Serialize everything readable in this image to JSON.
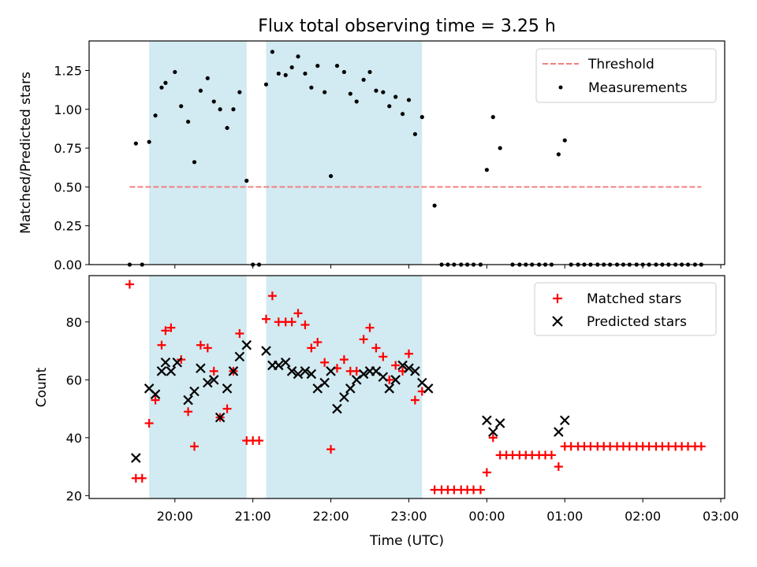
{
  "title": "Flux total observing time = 3.25 h",
  "colors": {
    "shade": "#add8e6",
    "threshold": "#f08080",
    "measurement": "#000000",
    "matched": "#ff0000",
    "predicted": "#000000"
  },
  "chart_data": [
    {
      "type": "scatter",
      "ylabel": "Matched/Predicted stars",
      "xlim_hours": [
        18.9,
        27.05
      ],
      "ylim": [
        0,
        1.44
      ],
      "yticks": [
        "0.00",
        "0.25",
        "0.50",
        "0.75",
        "1.00",
        "1.25"
      ],
      "legend": {
        "placement": "top-right",
        "entries": [
          "Threshold",
          "Measurements"
        ]
      },
      "shaded_intervals_hours": [
        [
          19.67,
          20.92
        ],
        [
          21.17,
          23.17
        ]
      ],
      "threshold": {
        "value": 0.5,
        "x_range_hours": [
          19.42,
          26.75
        ]
      },
      "series": [
        {
          "name": "Measurements",
          "points": [
            [
              19.42,
              0
            ],
            [
              19.5,
              0.78
            ],
            [
              19.58,
              0
            ],
            [
              19.67,
              0.79
            ],
            [
              19.75,
              0.96
            ],
            [
              19.83,
              1.14
            ],
            [
              19.88,
              1.17
            ],
            [
              20.0,
              1.24
            ],
            [
              20.08,
              1.02
            ],
            [
              20.17,
              0.92
            ],
            [
              20.25,
              0.66
            ],
            [
              20.33,
              1.12
            ],
            [
              20.42,
              1.2
            ],
            [
              20.5,
              1.05
            ],
            [
              20.58,
              1.0
            ],
            [
              20.67,
              0.88
            ],
            [
              20.75,
              1.0
            ],
            [
              20.83,
              1.11
            ],
            [
              20.92,
              0.54
            ],
            [
              21.0,
              0
            ],
            [
              21.08,
              0
            ],
            [
              21.17,
              1.16
            ],
            [
              21.25,
              1.37
            ],
            [
              21.33,
              1.23
            ],
            [
              21.42,
              1.22
            ],
            [
              21.5,
              1.27
            ],
            [
              21.58,
              1.34
            ],
            [
              21.67,
              1.23
            ],
            [
              21.75,
              1.14
            ],
            [
              21.83,
              1.28
            ],
            [
              21.92,
              1.11
            ],
            [
              22.0,
              0.57
            ],
            [
              22.08,
              1.28
            ],
            [
              22.17,
              1.24
            ],
            [
              22.25,
              1.1
            ],
            [
              22.33,
              1.05
            ],
            [
              22.42,
              1.19
            ],
            [
              22.5,
              1.24
            ],
            [
              22.58,
              1.12
            ],
            [
              22.67,
              1.11
            ],
            [
              22.75,
              1.02
            ],
            [
              22.83,
              1.08
            ],
            [
              22.92,
              0.97
            ],
            [
              23.0,
              1.06
            ],
            [
              23.08,
              0.84
            ],
            [
              23.17,
              0.95
            ],
            [
              23.33,
              0.38
            ],
            [
              23.42,
              0
            ],
            [
              23.5,
              0
            ],
            [
              23.58,
              0
            ],
            [
              23.67,
              0
            ],
            [
              23.75,
              0
            ],
            [
              23.83,
              0
            ],
            [
              23.92,
              0
            ],
            [
              24.0,
              0.61
            ],
            [
              24.08,
              0.95
            ],
            [
              24.17,
              0.75
            ],
            [
              24.33,
              0
            ],
            [
              24.42,
              0
            ],
            [
              24.5,
              0
            ],
            [
              24.58,
              0
            ],
            [
              24.67,
              0
            ],
            [
              24.75,
              0
            ],
            [
              24.83,
              0
            ],
            [
              24.92,
              0.71
            ],
            [
              25.0,
              0.8
            ],
            [
              25.08,
              0
            ],
            [
              25.17,
              0
            ],
            [
              25.25,
              0
            ],
            [
              25.33,
              0
            ],
            [
              25.42,
              0
            ],
            [
              25.5,
              0
            ],
            [
              25.58,
              0
            ],
            [
              25.67,
              0
            ],
            [
              25.75,
              0
            ],
            [
              25.83,
              0
            ],
            [
              25.92,
              0
            ],
            [
              26.0,
              0
            ],
            [
              26.08,
              0
            ],
            [
              26.17,
              0
            ],
            [
              26.25,
              0
            ],
            [
              26.33,
              0
            ],
            [
              26.42,
              0
            ],
            [
              26.5,
              0
            ],
            [
              26.58,
              0
            ],
            [
              26.67,
              0
            ],
            [
              26.75,
              0
            ]
          ]
        }
      ]
    },
    {
      "type": "scatter",
      "xlabel": "Time (UTC)",
      "ylabel": "Count",
      "xlim_hours": [
        18.9,
        27.05
      ],
      "ylim": [
        19,
        96
      ],
      "yticks": [
        "20",
        "40",
        "60",
        "80"
      ],
      "xticks": [
        {
          "hour": 20,
          "label": "20:00"
        },
        {
          "hour": 21,
          "label": "21:00"
        },
        {
          "hour": 22,
          "label": "22:00"
        },
        {
          "hour": 23,
          "label": "23:00"
        },
        {
          "hour": 24,
          "label": "00:00"
        },
        {
          "hour": 25,
          "label": "01:00"
        },
        {
          "hour": 26,
          "label": "02:00"
        },
        {
          "hour": 27,
          "label": "03:00"
        }
      ],
      "legend": {
        "placement": "top-right",
        "entries": [
          "Matched stars",
          "Predicted stars"
        ]
      },
      "shaded_intervals_hours": [
        [
          19.67,
          20.92
        ],
        [
          21.17,
          23.17
        ]
      ],
      "series": [
        {
          "name": "Matched stars",
          "marker": "plus",
          "points": [
            [
              19.42,
              93
            ],
            [
              19.5,
              26
            ],
            [
              19.58,
              26
            ],
            [
              19.67,
              45
            ],
            [
              19.75,
              53
            ],
            [
              19.83,
              72
            ],
            [
              19.88,
              77
            ],
            [
              19.95,
              78
            ],
            [
              20.08,
              67
            ],
            [
              20.17,
              49
            ],
            [
              20.25,
              37
            ],
            [
              20.33,
              72
            ],
            [
              20.42,
              71
            ],
            [
              20.5,
              63
            ],
            [
              20.58,
              47
            ],
            [
              20.67,
              50
            ],
            [
              20.75,
              63
            ],
            [
              20.83,
              76
            ],
            [
              20.92,
              39
            ],
            [
              21.0,
              39
            ],
            [
              21.08,
              39
            ],
            [
              21.17,
              81
            ],
            [
              21.25,
              89
            ],
            [
              21.33,
              80
            ],
            [
              21.42,
              80
            ],
            [
              21.5,
              80
            ],
            [
              21.58,
              83
            ],
            [
              21.67,
              79
            ],
            [
              21.75,
              71
            ],
            [
              21.83,
              73
            ],
            [
              21.92,
              66
            ],
            [
              22.0,
              36
            ],
            [
              22.08,
              64
            ],
            [
              22.17,
              67
            ],
            [
              22.25,
              63
            ],
            [
              22.33,
              63
            ],
            [
              22.42,
              74
            ],
            [
              22.5,
              78
            ],
            [
              22.58,
              71
            ],
            [
              22.67,
              68
            ],
            [
              22.75,
              60
            ],
            [
              22.83,
              65
            ],
            [
              22.92,
              63
            ],
            [
              23.0,
              69
            ],
            [
              23.08,
              53
            ],
            [
              23.17,
              56
            ],
            [
              23.33,
              22
            ],
            [
              23.42,
              22
            ],
            [
              23.5,
              22
            ],
            [
              23.58,
              22
            ],
            [
              23.67,
              22
            ],
            [
              23.75,
              22
            ],
            [
              23.83,
              22
            ],
            [
              23.92,
              22
            ],
            [
              24.0,
              28
            ],
            [
              24.08,
              40
            ],
            [
              24.17,
              34
            ],
            [
              24.25,
              34
            ],
            [
              24.33,
              34
            ],
            [
              24.42,
              34
            ],
            [
              24.5,
              34
            ],
            [
              24.58,
              34
            ],
            [
              24.67,
              34
            ],
            [
              24.75,
              34
            ],
            [
              24.83,
              34
            ],
            [
              24.92,
              30
            ],
            [
              25.0,
              37
            ],
            [
              25.08,
              37
            ],
            [
              25.17,
              37
            ],
            [
              25.25,
              37
            ],
            [
              25.33,
              37
            ],
            [
              25.42,
              37
            ],
            [
              25.5,
              37
            ],
            [
              25.58,
              37
            ],
            [
              25.67,
              37
            ],
            [
              25.75,
              37
            ],
            [
              25.83,
              37
            ],
            [
              25.92,
              37
            ],
            [
              26.0,
              37
            ],
            [
              26.08,
              37
            ],
            [
              26.17,
              37
            ],
            [
              26.25,
              37
            ],
            [
              26.33,
              37
            ],
            [
              26.42,
              37
            ],
            [
              26.5,
              37
            ],
            [
              26.58,
              37
            ],
            [
              26.67,
              37
            ],
            [
              26.75,
              37
            ]
          ]
        },
        {
          "name": "Predicted stars",
          "marker": "x",
          "points": [
            [
              19.5,
              33
            ],
            [
              19.67,
              57
            ],
            [
              19.75,
              55
            ],
            [
              19.83,
              63
            ],
            [
              19.88,
              66
            ],
            [
              19.95,
              63
            ],
            [
              20.03,
              66
            ],
            [
              20.17,
              53
            ],
            [
              20.25,
              56
            ],
            [
              20.33,
              64
            ],
            [
              20.42,
              59
            ],
            [
              20.5,
              60
            ],
            [
              20.58,
              47
            ],
            [
              20.67,
              57
            ],
            [
              20.75,
              63
            ],
            [
              20.83,
              68
            ],
            [
              20.92,
              72
            ],
            [
              21.17,
              70
            ],
            [
              21.25,
              65
            ],
            [
              21.33,
              65
            ],
            [
              21.42,
              66
            ],
            [
              21.5,
              63
            ],
            [
              21.58,
              62
            ],
            [
              21.67,
              63
            ],
            [
              21.75,
              62
            ],
            [
              21.83,
              57
            ],
            [
              21.92,
              59
            ],
            [
              22.0,
              63
            ],
            [
              22.08,
              50
            ],
            [
              22.17,
              54
            ],
            [
              22.25,
              57
            ],
            [
              22.33,
              60
            ],
            [
              22.42,
              62
            ],
            [
              22.5,
              63
            ],
            [
              22.58,
              63
            ],
            [
              22.67,
              61
            ],
            [
              22.75,
              57
            ],
            [
              22.83,
              60
            ],
            [
              22.92,
              65
            ],
            [
              23.0,
              64
            ],
            [
              23.08,
              63
            ],
            [
              23.17,
              59
            ],
            [
              23.25,
              57
            ],
            [
              24.0,
              46
            ],
            [
              24.08,
              42
            ],
            [
              24.17,
              45
            ],
            [
              24.92,
              42
            ],
            [
              25.0,
              46
            ]
          ]
        }
      ]
    }
  ]
}
